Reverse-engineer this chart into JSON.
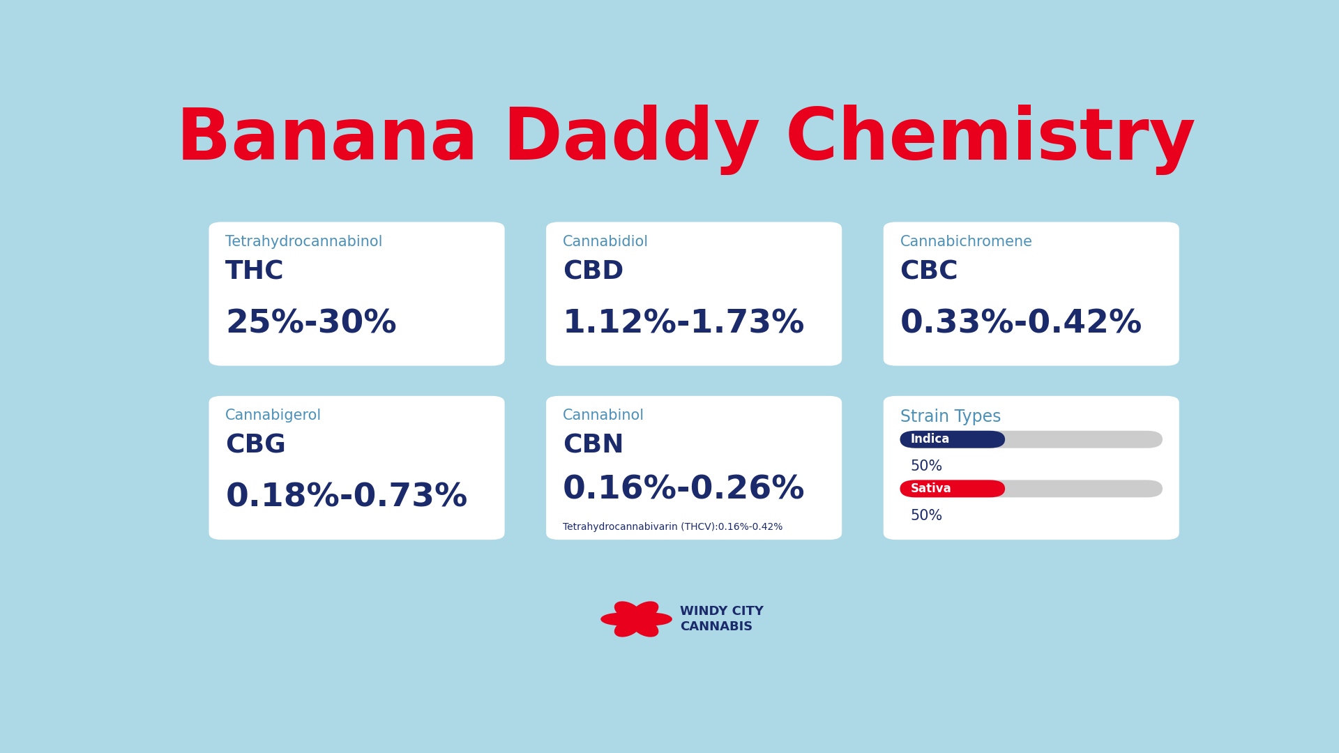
{
  "title": "Banana Daddy Chemistry",
  "bg_color": "#ADD8E6",
  "card_bg": "#FFFFFF",
  "title_color": "#E8001C",
  "dark_blue": "#1B2A6B",
  "medium_blue": "#4A90B8",
  "cards": [
    {
      "full_name": "Tetrahydrocannabinol",
      "abbr": "THC",
      "value": "25%-30%",
      "note": ""
    },
    {
      "full_name": "Cannabidiol",
      "abbr": "CBD",
      "value": "1.12%-1.73%",
      "note": ""
    },
    {
      "full_name": "Cannabichromene",
      "abbr": "CBC",
      "value": "0.33%-0.42%",
      "note": ""
    },
    {
      "full_name": "Cannabigerol",
      "abbr": "CBG",
      "value": "0.18%-0.73%",
      "note": ""
    },
    {
      "full_name": "Cannabinol",
      "abbr": "CBN",
      "value": "0.16%-0.26%",
      "note": "Tetrahydrocannabivarin (THCV):0.16%-0.42%"
    }
  ],
  "strain_title": "Strain Types",
  "strains": [
    {
      "name": "Indica",
      "pct": 50,
      "color": "#1B2A6B"
    },
    {
      "name": "Sativa",
      "pct": 50,
      "color": "#E8001C"
    }
  ],
  "logo_text1": "WINDY CITY",
  "logo_text2": "CANNABIS",
  "bar_bg_color": "#CCCCCC"
}
